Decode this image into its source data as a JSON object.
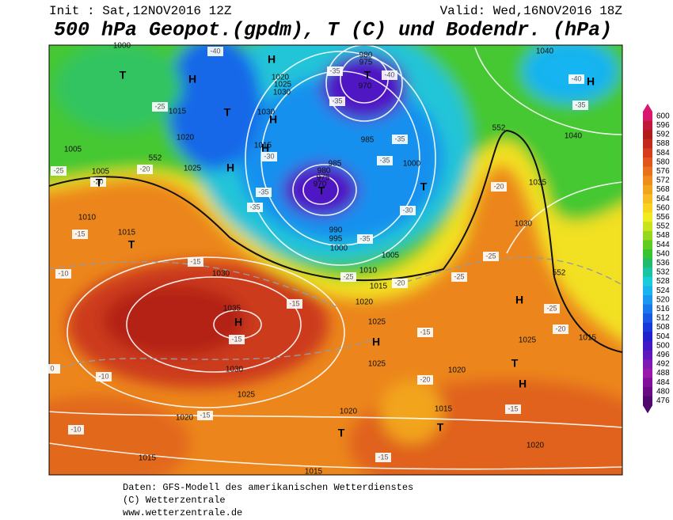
{
  "header": {
    "init": "Init : Sat,12NOV2016 12Z",
    "valid": "Valid: Wed,16NOV2016 18Z",
    "title": "500 hPa Geopot.(gpdm), T (C) und Bodendr. (hPa)"
  },
  "colorbar": {
    "levels": [
      600,
      596,
      592,
      588,
      584,
      580,
      576,
      572,
      568,
      564,
      560,
      556,
      552,
      548,
      544,
      540,
      536,
      532,
      528,
      524,
      520,
      516,
      512,
      508,
      504,
      500,
      496,
      492,
      488,
      484,
      480,
      476
    ],
    "colors": [
      "#d8186c",
      "#c01838",
      "#b01c1c",
      "#c42a1c",
      "#d83c1c",
      "#e0561c",
      "#e8721c",
      "#ee8c1c",
      "#f2a41c",
      "#f6bc20",
      "#f8d420",
      "#f0ec20",
      "#c8e41c",
      "#98d81c",
      "#60cc20",
      "#38c430",
      "#20bc6c",
      "#18c4a4",
      "#18ccd8",
      "#18b4f0",
      "#1898f0",
      "#1878ec",
      "#1858e4",
      "#1838dc",
      "#2020cc",
      "#4018c4",
      "#6018bc",
      "#8018b4",
      "#9818ac",
      "#80109c",
      "#680c84",
      "#50086c"
    ]
  },
  "map": {
    "isobar_labels": [
      "1000",
      "1020",
      "1025",
      "1030",
      "1030",
      "1015",
      "1015",
      "1020",
      "1005",
      "1005",
      "1025",
      "1010",
      "1015",
      "1030",
      "1035",
      "1030",
      "1025",
      "1020",
      "1015",
      "1015",
      "980",
      "975",
      "970",
      "985",
      "985",
      "980",
      "975",
      "970",
      "990",
      "995",
      "1000",
      "1005",
      "1010",
      "1015",
      "1020",
      "1025",
      "1025",
      "1020",
      "1015",
      "1020",
      "1020",
      "1025",
      "1015",
      "1000",
      "1030",
      "1035",
      "1040",
      "1040",
      "552",
      "552",
      "552"
    ],
    "temperature_labels": [
      "-40",
      "-25",
      "-25",
      "-20",
      "-20",
      "-15",
      "-10",
      "-15",
      "-15",
      "-15",
      "-10",
      "-15",
      "-10",
      "-30",
      "-35",
      "-35",
      "-35",
      "-35",
      "-35",
      "-40",
      "-35",
      "-35",
      "-30",
      "-25",
      "-20",
      "-15",
      "-25",
      "-25",
      "-20",
      "-25",
      "-20",
      "-15",
      "-15",
      "-20",
      "-40",
      "-35",
      "0"
    ],
    "centers": [
      "T",
      "H",
      "H",
      "T",
      "H",
      "H",
      "H",
      "T",
      "T",
      "H",
      "T",
      "T",
      "T",
      "H",
      "H",
      "H",
      "T",
      "H",
      "T",
      "T"
    ]
  },
  "footer": {
    "lines": [
      "Daten: GFS-Modell des amerikanischen Wetterdienstes",
      "(C) Wetterzentrale",
      "www.wetterzentrale.de"
    ]
  }
}
